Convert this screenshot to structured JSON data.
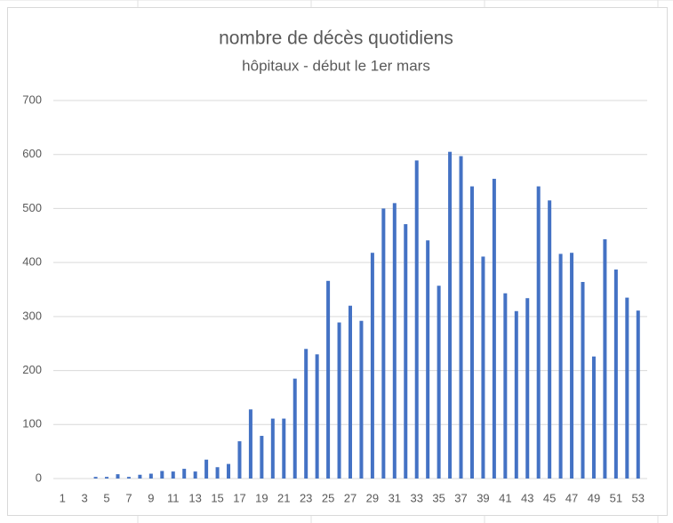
{
  "chart_data": {
    "type": "bar",
    "title": "nombre de décès quotidiens",
    "subtitle": "hôpitaux - début le 1er mars",
    "categories": [
      1,
      null,
      3,
      null,
      5,
      null,
      7,
      null,
      9,
      null,
      11,
      null,
      13,
      null,
      15,
      null,
      17,
      null,
      19,
      null,
      21,
      null,
      23,
      null,
      25,
      null,
      27,
      null,
      29,
      null,
      31,
      null,
      33,
      null,
      35,
      null,
      37,
      null,
      39,
      null,
      41,
      null,
      43,
      null,
      45,
      null,
      47,
      null,
      49,
      null,
      51,
      null,
      53
    ],
    "values": [
      0,
      0,
      0,
      3,
      3,
      8,
      3,
      7,
      9,
      14,
      13,
      18,
      13,
      35,
      21,
      27,
      69,
      128,
      79,
      111,
      111,
      185,
      240,
      230,
      366,
      289,
      320,
      292,
      418,
      500,
      510,
      471,
      589,
      441,
      357,
      605,
      597,
      541,
      411,
      555,
      343,
      310,
      334,
      541,
      515,
      416,
      418,
      364,
      226,
      443,
      387,
      335,
      311
    ],
    "color": "#4472c4",
    "ylim": [
      0,
      700
    ],
    "yticks": [
      0,
      100,
      200,
      300,
      400,
      500,
      600,
      700
    ],
    "grid": true
  }
}
